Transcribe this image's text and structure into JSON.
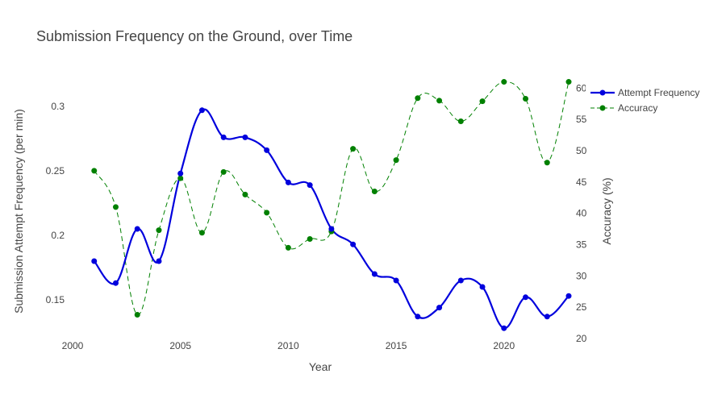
{
  "chart_data": {
    "type": "line",
    "title": "Submission Frequency on the Ground, over Time",
    "xlabel": "Year",
    "ylabel": "Submission Attempt Frequency (per min)",
    "y2label": "Accuracy (%)",
    "xlim": [
      2000,
      2023
    ],
    "ylim": [
      0.12,
      0.32
    ],
    "y2lim": [
      20,
      61.2
    ],
    "x_ticks": [
      2000,
      2005,
      2010,
      2015,
      2020
    ],
    "y_ticks": [
      0.15,
      0.2,
      0.25,
      0.3
    ],
    "y_tick_labels": [
      "0.15",
      "0.2",
      "0.25",
      "0.3"
    ],
    "y2_ticks": [
      20,
      25,
      30,
      35,
      40,
      45,
      50,
      55,
      60
    ],
    "legend_position": "top-right",
    "grid": false,
    "x": [
      2001,
      2002,
      2003,
      2004,
      2005,
      2006,
      2007,
      2008,
      2009,
      2010,
      2011,
      2012,
      2013,
      2014,
      2015,
      2016,
      2017,
      2018,
      2019,
      2020,
      2021,
      2022,
      2023
    ],
    "series": [
      {
        "name": "Attempt Frequency",
        "axis": "y",
        "color": "#0000dd",
        "line_style": "solid",
        "values": [
          0.18,
          0.163,
          0.205,
          0.18,
          0.248,
          0.297,
          0.276,
          0.276,
          0.266,
          0.241,
          0.239,
          0.205,
          0.193,
          0.17,
          0.165,
          0.137,
          0.144,
          0.165,
          0.16,
          0.128,
          0.152,
          0.137,
          0.153
        ]
      },
      {
        "name": "Accuracy",
        "axis": "y2",
        "color": "#008000",
        "line_style": "dashed",
        "values": [
          46.8,
          41.0,
          23.8,
          37.3,
          45.6,
          36.9,
          46.6,
          43.0,
          40.1,
          34.5,
          35.9,
          37.1,
          50.3,
          43.5,
          48.5,
          58.4,
          58.0,
          54.7,
          57.9,
          61.0,
          58.3,
          48.1,
          61.0
        ]
      }
    ]
  }
}
